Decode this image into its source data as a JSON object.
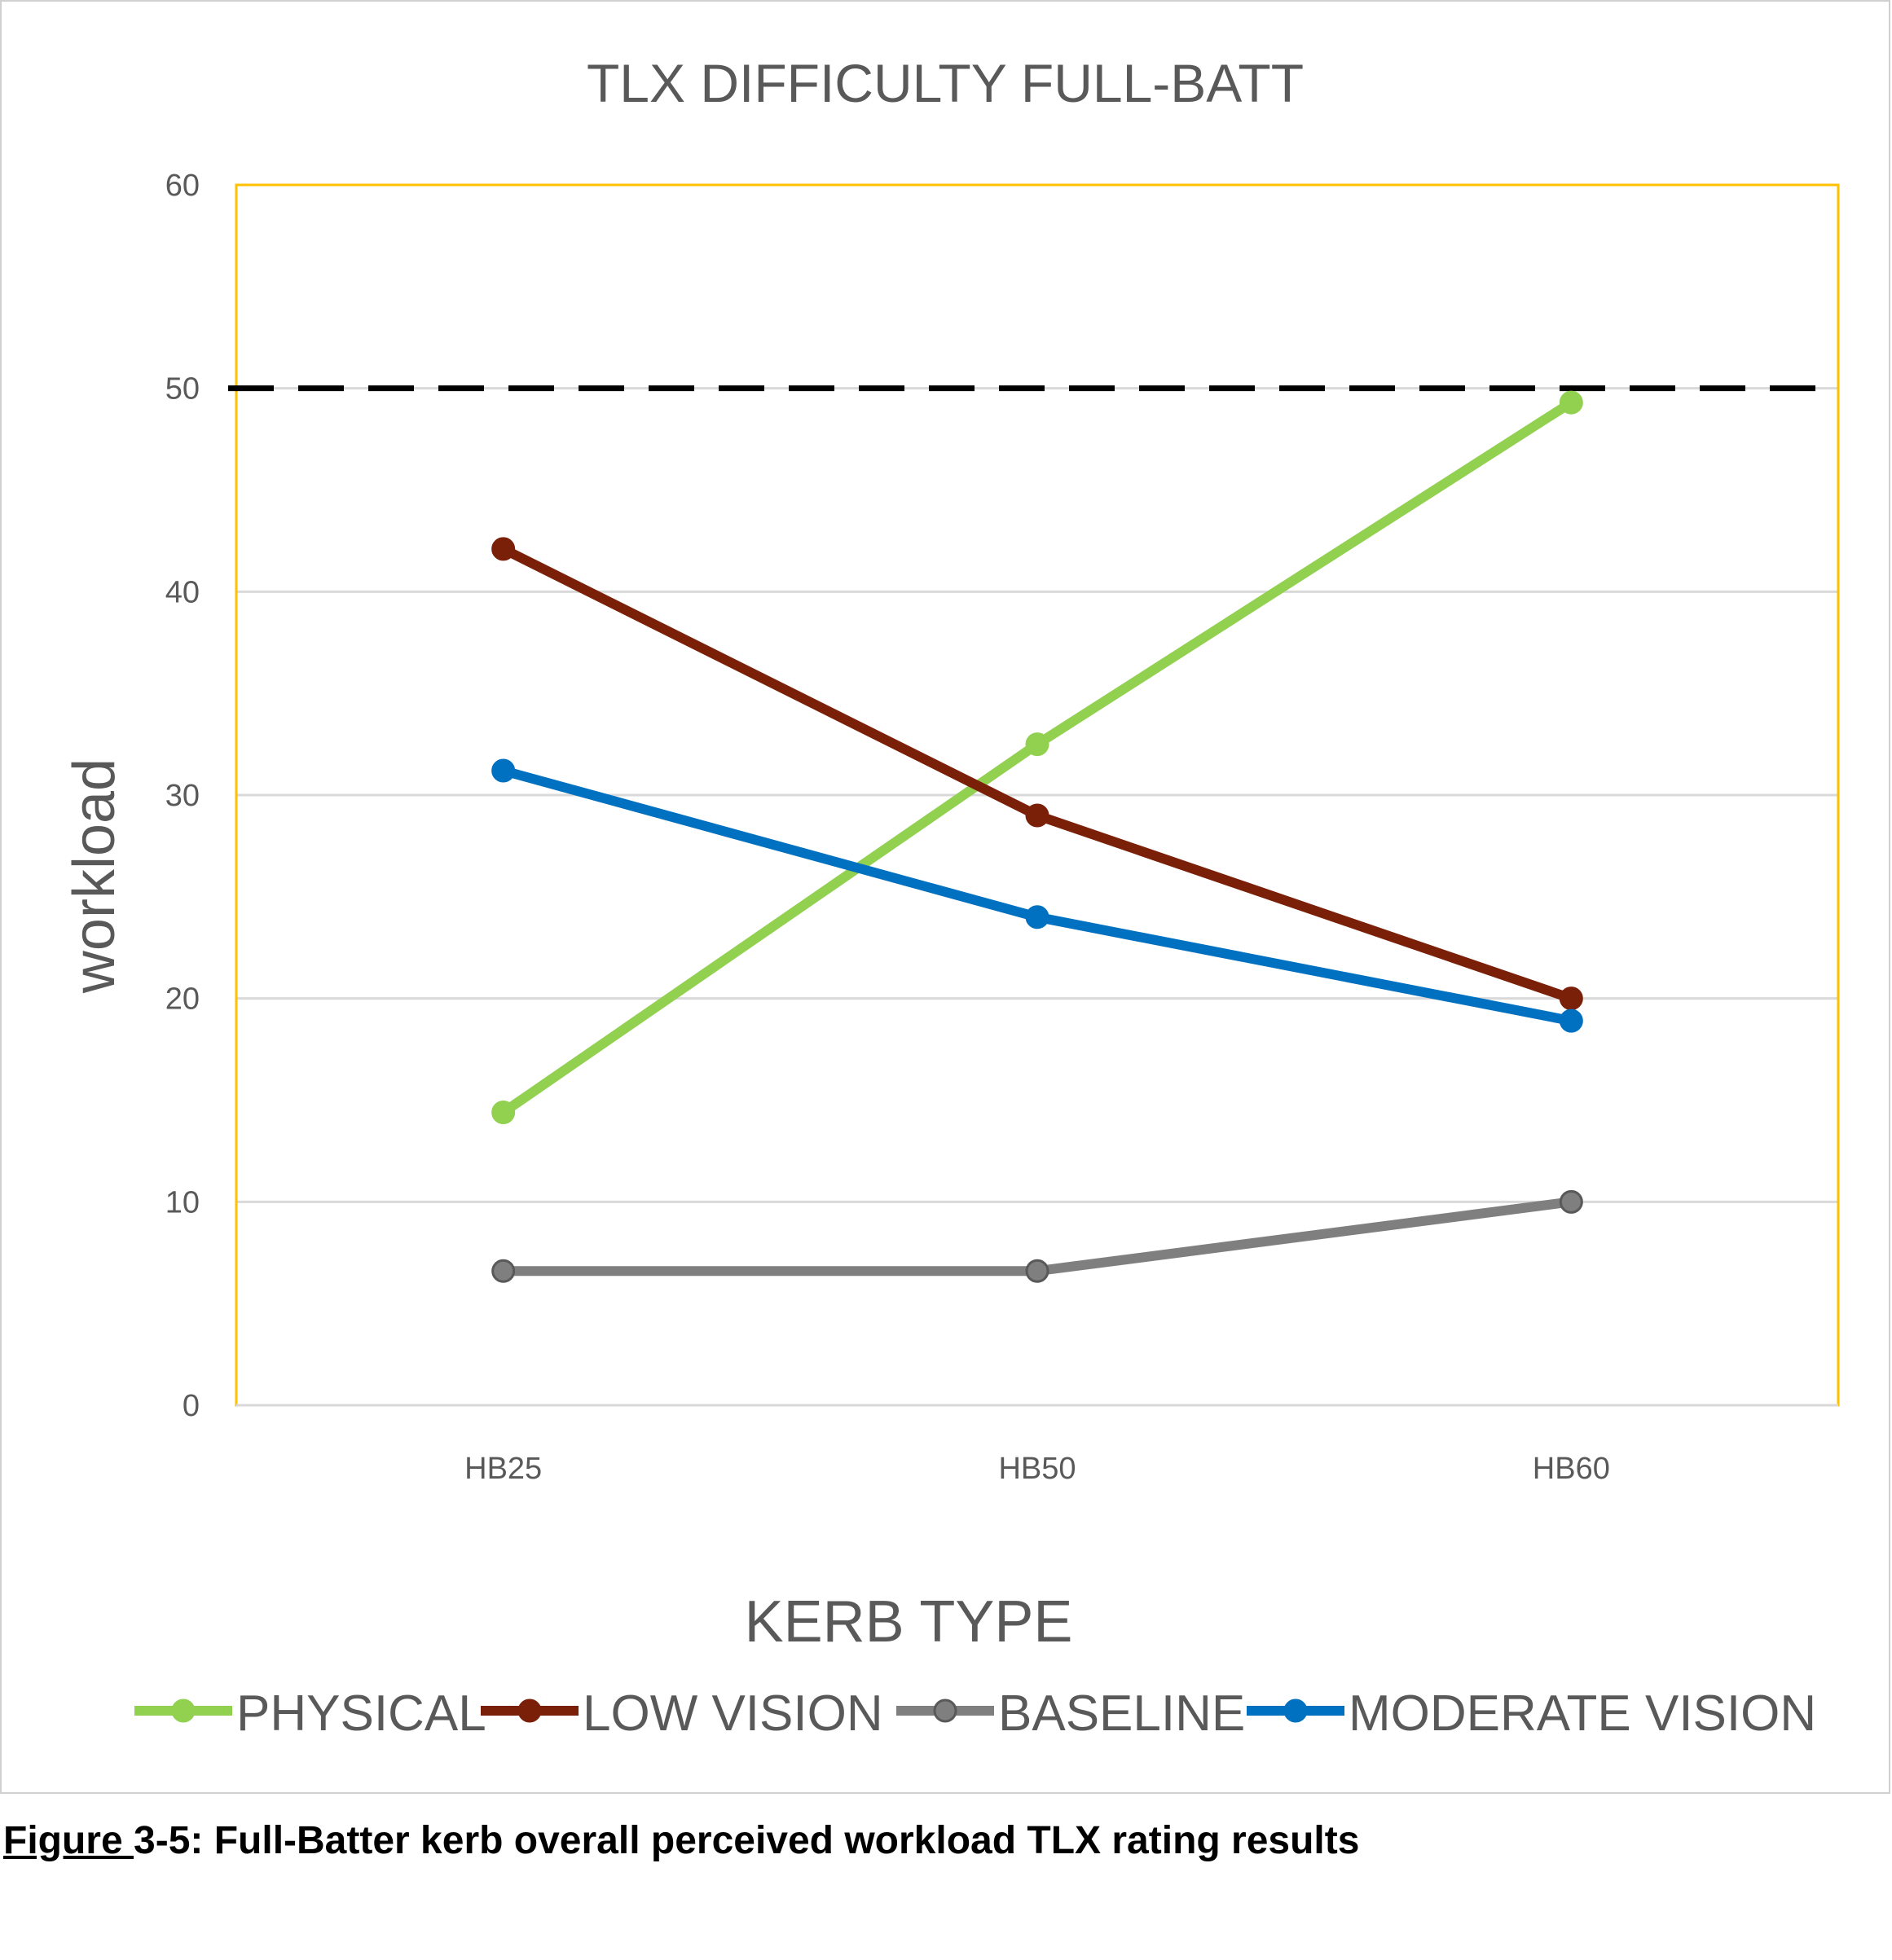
{
  "chart_data": {
    "type": "line",
    "title": "TLX DIFFICULTY FULL-BATT",
    "xlabel": "KERB TYPE",
    "ylabel": "workload",
    "categories": [
      "HB25",
      "HB50",
      "HB60"
    ],
    "ylim": [
      0,
      60
    ],
    "yticks": [
      0,
      10,
      20,
      30,
      40,
      50,
      60
    ],
    "grid": true,
    "legend": "bottom",
    "reference_line": {
      "y": 50,
      "style": "dashed",
      "color": "#000000"
    },
    "series": [
      {
        "name": "PHYSICAL",
        "color": "#92d050",
        "values": [
          14.4,
          32.5,
          49.3
        ]
      },
      {
        "name": "LOW VISION",
        "color": "#7b2008",
        "values": [
          42.1,
          29.0,
          20.0
        ]
      },
      {
        "name": "BASELINE",
        "color": "#7f7f7f",
        "values": [
          6.6,
          6.6,
          10.0
        ]
      },
      {
        "name": "MODERATE VISION",
        "color": "#0070c0",
        "values": [
          31.2,
          24.0,
          18.9
        ]
      }
    ]
  },
  "caption": {
    "prefix": "Figure ",
    "rest": "3-5: Full-Batter kerb overall perceived workload TLX rating results"
  }
}
